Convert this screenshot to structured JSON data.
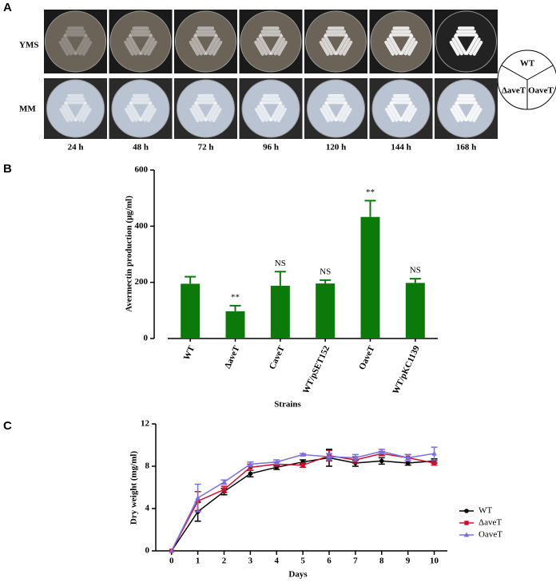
{
  "panel_a": {
    "label": "A",
    "rows": [
      "YMS",
      "MM"
    ],
    "times": [
      "24 h",
      "48 h",
      "72 h",
      "96 h",
      "120 h",
      "144 h",
      "168 h"
    ],
    "diagram": [
      "WT",
      "ΔaveT",
      "OaveT"
    ]
  },
  "chart_data": [
    {
      "panel": "B",
      "type": "bar",
      "ylabel": "Avermectin production (μg/ml)",
      "xlabel": "Strains",
      "categories": [
        "WT",
        "ΔaveT",
        "CaveT",
        "WT/pSET152",
        "OaveT",
        "WT/pKC1139"
      ],
      "values": [
        195,
        97,
        188,
        196,
        433,
        198
      ],
      "errors": [
        25,
        20,
        50,
        12,
        58,
        15
      ],
      "annotations": [
        null,
        "**",
        "NS",
        "NS",
        "**",
        "NS"
      ],
      "color": "#0b7a0b",
      "ylim": [
        0,
        600
      ],
      "yticks": [
        0,
        200,
        400,
        600
      ]
    },
    {
      "panel": "C",
      "type": "line",
      "ylabel": "Dry weight (mg/ml)",
      "xlabel": "Days",
      "x": [
        0,
        1,
        2,
        3,
        4,
        5,
        6,
        7,
        8,
        9,
        10
      ],
      "series": [
        {
          "name": "WT",
          "color": "#000000",
          "marker": "circle",
          "values": [
            0,
            3.7,
            5.6,
            7.3,
            7.9,
            8.4,
            8.8,
            8.3,
            8.5,
            8.3,
            8.5
          ],
          "errors": [
            0,
            0.9,
            0.3,
            0.3,
            0.2,
            0.2,
            0.8,
            0.3,
            0.3,
            0.2,
            0.2
          ]
        },
        {
          "name": "ΔaveT",
          "color": "#c8102e",
          "marker": "square",
          "values": [
            0,
            4.7,
            5.8,
            7.9,
            8.2,
            8.1,
            9.0,
            8.6,
            9.2,
            8.8,
            8.3
          ],
          "errors": [
            0,
            0.9,
            0.3,
            0.3,
            0.2,
            0.2,
            0.5,
            0.3,
            0.2,
            0.3,
            0.2
          ]
        },
        {
          "name": "OaveT",
          "color": "#7b6fe0",
          "marker": "triangle",
          "values": [
            0,
            5.0,
            6.5,
            8.2,
            8.4,
            9.1,
            8.9,
            8.8,
            9.4,
            8.8,
            9.2
          ],
          "errors": [
            0,
            1.3,
            0.2,
            0.2,
            0.2,
            0.1,
            0.3,
            0.3,
            0.2,
            0.3,
            0.6
          ]
        }
      ],
      "xlim": [
        -0.6,
        10.5
      ],
      "ylim": [
        0,
        12
      ],
      "yticks": [
        0,
        4,
        8,
        12
      ],
      "legend": "right"
    }
  ]
}
